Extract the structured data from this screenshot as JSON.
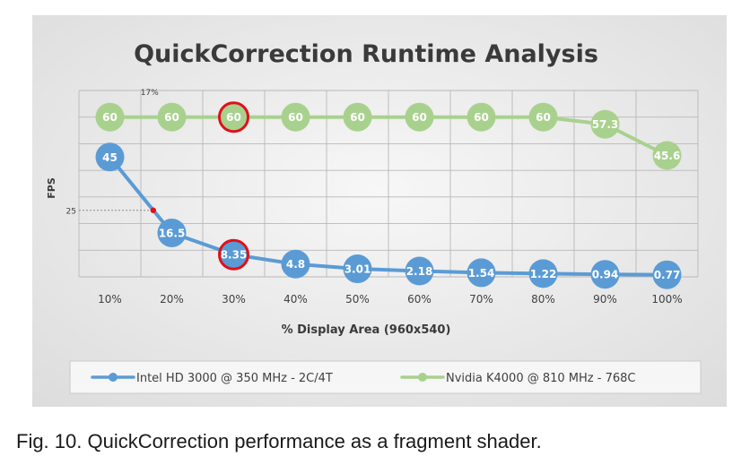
{
  "caption": "Fig. 10. QuickCorrection performance as a fragment shader.",
  "colors": {
    "intel": "#5b9bd5",
    "nvidia": "#a9d18e",
    "highlight": "#e0101a",
    "marker_dot": "#e0101a",
    "background": "#efefef",
    "grid": "#b8b8b8",
    "text": "#404040"
  },
  "chart_data": {
    "type": "line",
    "title": "QuickCorrection Runtime Analysis",
    "xlabel": "% Display Area (960x540)",
    "ylabel": "FPS",
    "categories": [
      "10%",
      "20%",
      "30%",
      "40%",
      "50%",
      "60%",
      "70%",
      "80%",
      "90%",
      "100%"
    ],
    "ylim": [
      0,
      70
    ],
    "grid": true,
    "legend_position": "bottom",
    "series": [
      {
        "name": "Intel HD 3000 @ 350 MHz - 2C/4T",
        "color_key": "intel",
        "values": [
          45,
          16.5,
          8.35,
          4.8,
          3.01,
          2.18,
          1.54,
          1.22,
          0.94,
          0.77
        ],
        "labels": [
          "45",
          "16.5",
          "8.35",
          "4.8",
          "3.01",
          "2.18",
          "1.54",
          "1.22",
          "0.94",
          "0.77"
        ]
      },
      {
        "name": "Nvidia K4000 @ 810 MHz - 768C",
        "color_key": "nvidia",
        "values": [
          60,
          60,
          60,
          60,
          60,
          60,
          60,
          60,
          57.3,
          45.6
        ],
        "labels": [
          "60",
          "60",
          "60",
          "60",
          "60",
          "60",
          "60",
          "60",
          "57.3",
          "45.6"
        ]
      }
    ],
    "annotations": {
      "reference_line_label": "25",
      "reference_line_value": 25,
      "crossing_label": "17%",
      "crossing_x": "17%",
      "highlighted_category": "30%"
    }
  }
}
